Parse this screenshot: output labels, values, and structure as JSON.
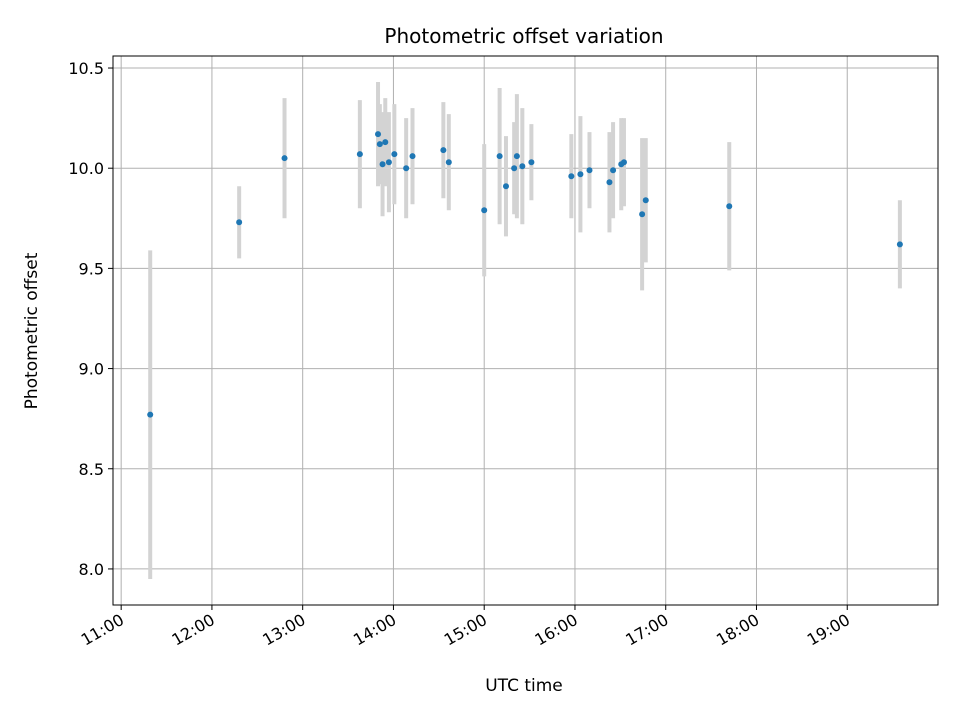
{
  "chart_data": {
    "type": "scatter",
    "title": "Photometric offset variation",
    "xlabel": "UTC time",
    "ylabel": "Photometric offset",
    "x_unit": "hours UTC",
    "xlim": [
      10.91,
      20.0
    ],
    "ylim": [
      7.82,
      10.56
    ],
    "x_ticks": [
      11,
      12,
      13,
      14,
      15,
      16,
      17,
      18,
      19
    ],
    "x_tick_labels": [
      "11:00",
      "12:00",
      "13:00",
      "14:00",
      "15:00",
      "16:00",
      "17:00",
      "18:00",
      "19:00"
    ],
    "y_ticks": [
      8.0,
      8.5,
      9.0,
      9.5,
      10.0,
      10.5
    ],
    "y_tick_labels": [
      "8.0",
      "8.5",
      "9.0",
      "9.5",
      "10.0",
      "10.5"
    ],
    "grid": true,
    "colors": {
      "points": "#1f77b4",
      "error_bars": "#d3d3d3"
    },
    "points": [
      {
        "x": 11.32,
        "y": 8.77,
        "yerr": 0.82
      },
      {
        "x": 12.3,
        "y": 9.73,
        "yerr": 0.18
      },
      {
        "x": 12.8,
        "y": 10.05,
        "yerr": 0.3
      },
      {
        "x": 13.63,
        "y": 10.07,
        "yerr": 0.27
      },
      {
        "x": 13.83,
        "y": 10.17,
        "yerr": 0.26
      },
      {
        "x": 13.85,
        "y": 10.12,
        "yerr": 0.2
      },
      {
        "x": 13.88,
        "y": 10.02,
        "yerr": 0.26
      },
      {
        "x": 13.91,
        "y": 10.13,
        "yerr": 0.22
      },
      {
        "x": 13.95,
        "y": 10.03,
        "yerr": 0.25
      },
      {
        "x": 14.01,
        "y": 10.07,
        "yerr": 0.25
      },
      {
        "x": 14.14,
        "y": 10.0,
        "yerr": 0.25
      },
      {
        "x": 14.21,
        "y": 10.06,
        "yerr": 0.24
      },
      {
        "x": 14.55,
        "y": 10.09,
        "yerr": 0.24
      },
      {
        "x": 14.61,
        "y": 10.03,
        "yerr": 0.24
      },
      {
        "x": 15.0,
        "y": 9.79,
        "yerr": 0.33
      },
      {
        "x": 15.17,
        "y": 10.06,
        "yerr": 0.34
      },
      {
        "x": 15.24,
        "y": 9.91,
        "yerr": 0.25
      },
      {
        "x": 15.33,
        "y": 10.0,
        "yerr": 0.23
      },
      {
        "x": 15.36,
        "y": 10.06,
        "yerr": 0.31
      },
      {
        "x": 15.42,
        "y": 10.01,
        "yerr": 0.29
      },
      {
        "x": 15.52,
        "y": 10.03,
        "yerr": 0.19
      },
      {
        "x": 15.96,
        "y": 9.96,
        "yerr": 0.21
      },
      {
        "x": 16.06,
        "y": 9.97,
        "yerr": 0.29
      },
      {
        "x": 16.16,
        "y": 9.99,
        "yerr": 0.19
      },
      {
        "x": 16.38,
        "y": 9.93,
        "yerr": 0.25
      },
      {
        "x": 16.42,
        "y": 9.99,
        "yerr": 0.24
      },
      {
        "x": 16.51,
        "y": 10.02,
        "yerr": 0.23
      },
      {
        "x": 16.54,
        "y": 10.03,
        "yerr": 0.22
      },
      {
        "x": 16.74,
        "y": 9.77,
        "yerr": 0.38
      },
      {
        "x": 16.78,
        "y": 9.84,
        "yerr": 0.31
      },
      {
        "x": 17.7,
        "y": 9.81,
        "yerr": 0.32
      },
      {
        "x": 19.58,
        "y": 9.62,
        "yerr": 0.22
      }
    ]
  }
}
